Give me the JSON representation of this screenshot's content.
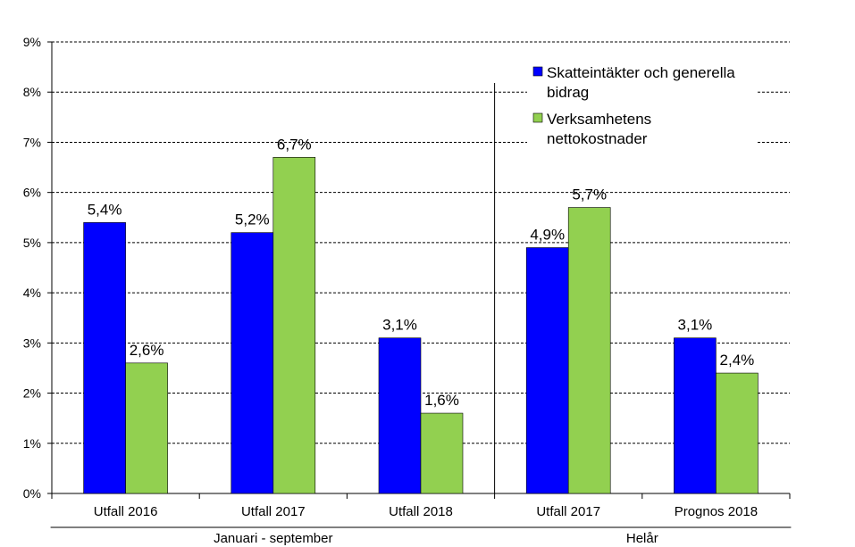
{
  "chart_data": {
    "type": "bar",
    "categories": [
      "Utfall 2016",
      "Utfall 2017",
      "Utfall 2018",
      "Utfall 2017",
      "Prognos 2018"
    ],
    "groups": [
      {
        "label": "Januari - september",
        "category_indices": [
          0,
          1,
          2
        ]
      },
      {
        "label": "Helår",
        "category_indices": [
          3,
          4
        ]
      }
    ],
    "series": [
      {
        "name": "Skatteintäkter och generella bidrag",
        "legend_lines": [
          "Skatteintäkter och generella",
          "bidrag"
        ],
        "color": "#0000ff",
        "values": [
          5.4,
          5.2,
          3.1,
          4.9,
          3.1
        ],
        "labels": [
          "5,4%",
          "5,2%",
          "3,1%",
          "4,9%",
          "3,1%"
        ]
      },
      {
        "name": "Verksamhetens nettokostnader",
        "legend_lines": [
          "Verksamhetens",
          "nettokostnader"
        ],
        "color": "#92d050",
        "values": [
          2.6,
          6.7,
          1.6,
          5.7,
          2.4
        ],
        "labels": [
          "2,6%",
          "6,7%",
          "1,6%",
          "5,7%",
          "2,4%"
        ]
      }
    ],
    "ylim": [
      0,
      9
    ],
    "yticks": [
      "0%",
      "1%",
      "2%",
      "3%",
      "4%",
      "5%",
      "6%",
      "7%",
      "8%",
      "9%"
    ],
    "grid": true,
    "legend_position": "top-right",
    "title": "",
    "xlabel": "",
    "ylabel": ""
  }
}
